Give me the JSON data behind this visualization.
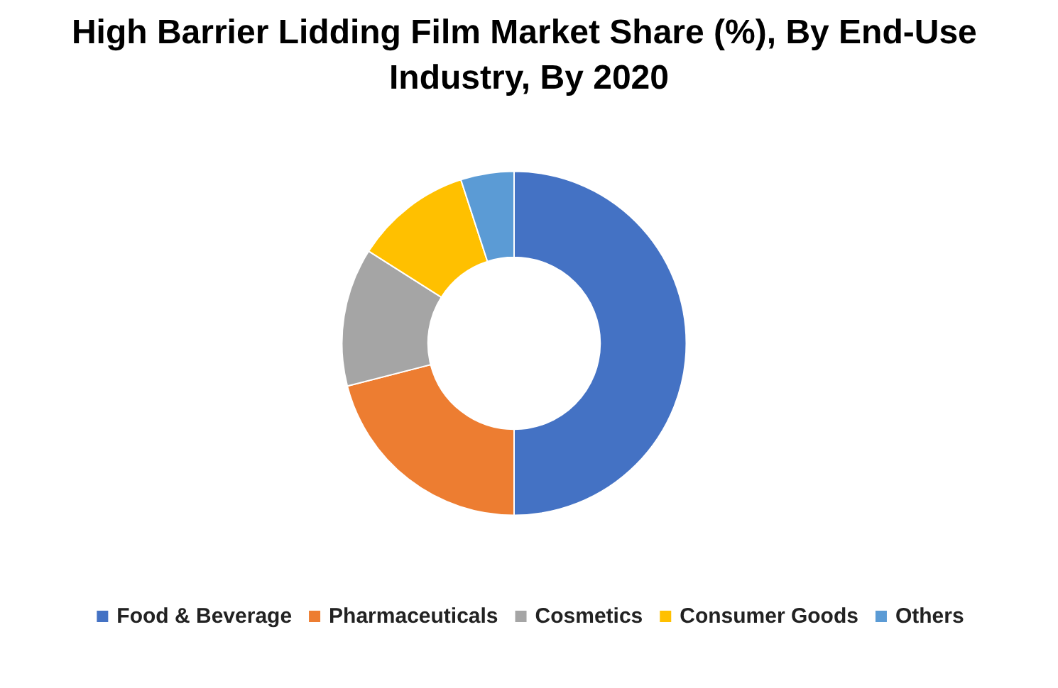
{
  "chart_data": {
    "type": "donut",
    "title": "High Barrier Lidding Film Market Share (%), By End-Use Industry, By 2020",
    "categories": [
      "Food & Beverage",
      "Pharmaceuticals",
      "Cosmetics",
      "Consumer Goods",
      "Others"
    ],
    "values": [
      50,
      21,
      13,
      11,
      5
    ],
    "colors": [
      "#4472c4",
      "#ed7d31",
      "#a5a5a5",
      "#ffc000",
      "#5b9bd5"
    ],
    "legend": "bottom"
  }
}
